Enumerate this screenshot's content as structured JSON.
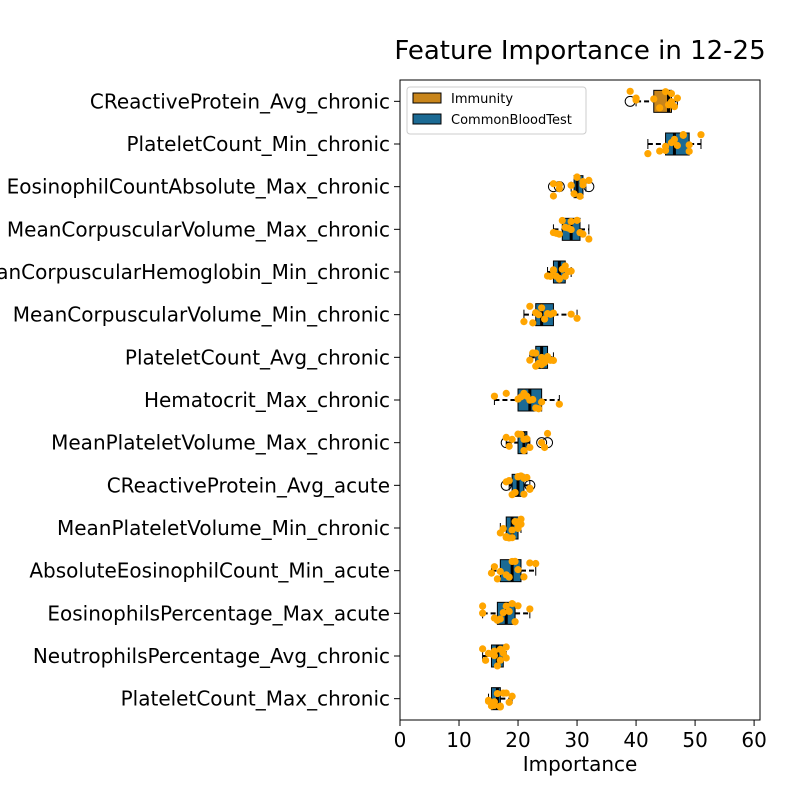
{
  "chart_data": {
    "type": "boxplot",
    "orientation": "horizontal",
    "title": "Feature Importance in 12-25",
    "xlabel": "Importance",
    "ylabel": "",
    "xlim": [
      0,
      61
    ],
    "xticks": [
      0,
      10,
      20,
      30,
      40,
      50,
      60
    ],
    "grid": false,
    "legend": {
      "position": "top-left",
      "entries": [
        {
          "name": "Immunity",
          "color": "#c8851b"
        },
        {
          "name": "CommonBloodTest",
          "color": "#1b6a94"
        }
      ]
    },
    "point_color": "#ffa500",
    "features": [
      {
        "name": "CReactiveProtein_Avg_chronic",
        "group": "Immunity",
        "whislo": 40,
        "q1": 43,
        "med": 45.5,
        "q3": 46,
        "whishi": 47,
        "fliers": [
          39
        ],
        "points": [
          39,
          40,
          40,
          43,
          44,
          45,
          45.5,
          46,
          46,
          46.5,
          47
        ]
      },
      {
        "name": "PlateletCount_Min_chronic",
        "group": "CommonBloodTest",
        "whislo": 42,
        "q1": 45,
        "med": 46.5,
        "q3": 49,
        "whishi": 51,
        "fliers": [],
        "points": [
          42,
          44,
          45,
          45,
          46,
          46.5,
          47,
          48,
          48,
          49,
          49,
          51
        ]
      },
      {
        "name": "EosinophilCountAbsolute_Max_chronic",
        "group": "CommonBloodTest",
        "whislo": 29,
        "q1": 29.5,
        "med": 30,
        "q3": 31,
        "whishi": 31.5,
        "fliers": [
          26,
          27,
          32
        ],
        "points": [
          26,
          26,
          27,
          27,
          29,
          29.5,
          30,
          30,
          30.5,
          31,
          31,
          32
        ]
      },
      {
        "name": "MeanCorpuscularVolume_Max_chronic",
        "group": "CommonBloodTest",
        "whislo": 26,
        "q1": 27.5,
        "med": 29,
        "q3": 30.5,
        "whishi": 32,
        "fliers": [],
        "points": [
          26,
          26.5,
          27,
          27.5,
          28,
          28.5,
          29,
          29,
          30,
          30.5,
          31,
          32
        ]
      },
      {
        "name": "MeanCorpuscularHemoglobin_Min_chronic",
        "group": "CommonBloodTest",
        "whislo": 25,
        "q1": 26,
        "med": 27,
        "q3": 28,
        "whishi": 29,
        "fliers": [],
        "points": [
          25,
          25.5,
          26,
          26,
          26.5,
          27,
          27,
          27.5,
          28,
          28,
          28.5,
          29
        ]
      },
      {
        "name": "MeanCorpuscularVolume_Min_chronic",
        "group": "CommonBloodTest",
        "whislo": 21,
        "q1": 23,
        "med": 24,
        "q3": 26,
        "whishi": 30,
        "fliers": [],
        "points": [
          21,
          22,
          22.5,
          23,
          23.5,
          24,
          24.5,
          25,
          25.5,
          26,
          29,
          30
        ]
      },
      {
        "name": "PlateletCount_Avg_chronic",
        "group": "CommonBloodTest",
        "whislo": 22,
        "q1": 23,
        "med": 24,
        "q3": 25,
        "whishi": 26,
        "fliers": [],
        "points": [
          22,
          22.5,
          23,
          23,
          23.5,
          24,
          24,
          24.5,
          25,
          25,
          25.5,
          26
        ]
      },
      {
        "name": "Hematocrit_Max_chronic",
        "group": "CommonBloodTest",
        "whislo": 16,
        "q1": 20,
        "med": 22,
        "q3": 24,
        "whishi": 27,
        "fliers": [],
        "points": [
          16,
          18,
          20,
          20.5,
          21,
          21.5,
          22,
          22.5,
          23,
          23.5,
          24,
          27
        ]
      },
      {
        "name": "MeanPlateletVolume_Max_chronic",
        "group": "CommonBloodTest",
        "whislo": 18,
        "q1": 20,
        "med": 21,
        "q3": 21.5,
        "whishi": 22,
        "fliers": [
          18,
          24,
          25
        ],
        "points": [
          18,
          18.5,
          19,
          20,
          20.5,
          21,
          21,
          21.5,
          22,
          24,
          24.5,
          25
        ]
      },
      {
        "name": "CReactiveProtein_Avg_acute",
        "group": "CommonBloodTest",
        "whislo": 18.5,
        "q1": 19,
        "med": 20,
        "q3": 21,
        "whishi": 22,
        "fliers": [
          18,
          22
        ],
        "points": [
          18,
          18.5,
          19,
          19.5,
          20,
          20,
          20.5,
          21,
          21,
          21.5,
          22,
          22
        ]
      },
      {
        "name": "MeanPlateletVolume_Min_chronic",
        "group": "CommonBloodTest",
        "whislo": 17,
        "q1": 18,
        "med": 19,
        "q3": 20,
        "whishi": 20.5,
        "fliers": [],
        "points": [
          17,
          17.5,
          18,
          18,
          18.5,
          19,
          19,
          19.5,
          20,
          20,
          20.5,
          20.5
        ]
      },
      {
        "name": "AbsoluteEosinophilCount_Min_acute",
        "group": "CommonBloodTest",
        "whislo": 15.5,
        "q1": 17,
        "med": 19,
        "q3": 20.5,
        "whishi": 23,
        "fliers": [],
        "points": [
          15.5,
          16,
          16.5,
          17,
          18,
          18.5,
          19,
          19.5,
          20,
          21,
          22,
          23
        ]
      },
      {
        "name": "EosinophilsPercentage_Max_acute",
        "group": "CommonBloodTest",
        "whislo": 14,
        "q1": 16.5,
        "med": 18,
        "q3": 19.5,
        "whishi": 22,
        "fliers": [],
        "points": [
          14,
          14,
          16,
          16.5,
          17,
          17.5,
          18,
          18.5,
          19,
          19.5,
          20,
          22
        ]
      },
      {
        "name": "NeutrophilsPercentage_Avg_chronic",
        "group": "CommonBloodTest",
        "whislo": 14,
        "q1": 15.5,
        "med": 16.5,
        "q3": 17.5,
        "whishi": 18,
        "fliers": [],
        "points": [
          14,
          14.5,
          15,
          15.5,
          16,
          16,
          16.5,
          17,
          17,
          17.5,
          18,
          18
        ]
      },
      {
        "name": "PlateletCount_Max_chronic",
        "group": "CommonBloodTest",
        "whislo": 15,
        "q1": 15.5,
        "med": 16.5,
        "q3": 17,
        "whishi": 19,
        "fliers": [],
        "points": [
          15,
          15,
          15.5,
          16,
          16,
          16.5,
          17,
          17,
          17.5,
          18,
          18.5,
          19
        ]
      }
    ]
  }
}
